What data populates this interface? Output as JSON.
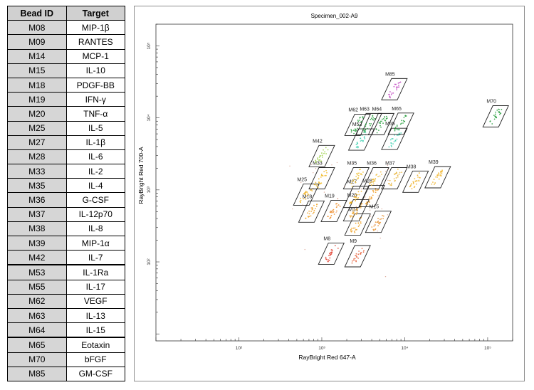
{
  "table": {
    "headers": {
      "bead": "Bead ID",
      "target": "Target"
    },
    "rows": [
      {
        "bead": "M08",
        "target": "MIP-1β"
      },
      {
        "bead": "M09",
        "target": "RANTES"
      },
      {
        "bead": "M14",
        "target": "MCP-1"
      },
      {
        "bead": "M15",
        "target": "IL-10"
      },
      {
        "bead": "M18",
        "target": "PDGF-BB"
      },
      {
        "bead": "M19",
        "target": "IFN-γ"
      },
      {
        "bead": "M20",
        "target": "TNF-α"
      },
      {
        "bead": "M25",
        "target": "IL-5"
      },
      {
        "bead": "M27",
        "target": "IL-1β"
      },
      {
        "bead": "M28",
        "target": "IL-6"
      },
      {
        "bead": "M33",
        "target": "IL-2"
      },
      {
        "bead": "M35",
        "target": "IL-4"
      },
      {
        "bead": "M36",
        "target": "G-CSF"
      },
      {
        "bead": "M37",
        "target": "IL-12p70"
      },
      {
        "bead": "M38",
        "target": "IL-8"
      },
      {
        "bead": "M39",
        "target": "MIP-1α"
      },
      {
        "bead": "M42",
        "target": "IL-7"
      },
      {
        "bead": "M53",
        "target": "IL-1Ra"
      },
      {
        "bead": "M55",
        "target": "IL-17"
      },
      {
        "bead": "M62",
        "target": "VEGF"
      },
      {
        "bead": "M63",
        "target": "IL-13"
      },
      {
        "bead": "M64",
        "target": "IL-15"
      },
      {
        "bead": "M65",
        "target": "Eotaxin"
      },
      {
        "bead": "M70",
        "target": "bFGF"
      },
      {
        "bead": "M85",
        "target": "GM-CSF"
      }
    ]
  },
  "chart_data": {
    "type": "scatter",
    "title": "Specimen_002-A9",
    "xlabel": "RayBright Red 647-A",
    "ylabel": "RayBright Red 700-A",
    "xscale": "log",
    "yscale": "log",
    "xlim": [
      10,
      200000
    ],
    "ylim": [
      8,
      200000
    ],
    "xticks": [
      "10²",
      "10³",
      "10⁴",
      "10⁵"
    ],
    "yticks": [
      "10²",
      "10³",
      "10⁴",
      "10⁵"
    ],
    "gates": [
      {
        "label": "M8",
        "x": 1300,
        "y": 130,
        "color": "#e03a2a"
      },
      {
        "label": "M9",
        "x": 2700,
        "y": 120,
        "color": "#e8603a"
      },
      {
        "label": "M14",
        "x": 2700,
        "y": 330,
        "color": "#f0a020"
      },
      {
        "label": "M15",
        "x": 4800,
        "y": 360,
        "color": "#e89030"
      },
      {
        "label": "M18",
        "x": 750,
        "y": 500,
        "color": "#f0a020"
      },
      {
        "label": "M19",
        "x": 1400,
        "y": 510,
        "color": "#f08a20"
      },
      {
        "label": "M20",
        "x": 2600,
        "y": 520,
        "color": "#f0a020"
      },
      {
        "label": "M25",
        "x": 650,
        "y": 860,
        "color": "#f0b020"
      },
      {
        "label": "M27",
        "x": 2600,
        "y": 800,
        "color": "#f0b020"
      },
      {
        "label": "M28",
        "x": 4000,
        "y": 820,
        "color": "#f09a20"
      },
      {
        "label": "M33",
        "x": 1000,
        "y": 1450,
        "color": "#f0b820"
      },
      {
        "label": "M35",
        "x": 2600,
        "y": 1450,
        "color": "#f0c030"
      },
      {
        "label": "M36",
        "x": 4500,
        "y": 1450,
        "color": "#f0b830"
      },
      {
        "label": "M37",
        "x": 7500,
        "y": 1450,
        "color": "#e8b030"
      },
      {
        "label": "M38",
        "x": 13500,
        "y": 1300,
        "color": "#f0b020"
      },
      {
        "label": "M39",
        "x": 25000,
        "y": 1500,
        "color": "#f0b020"
      },
      {
        "label": "M42",
        "x": 1000,
        "y": 2950,
        "color": "#9ad040"
      },
      {
        "label": "M53",
        "x": 3000,
        "y": 5000,
        "color": "#40d0b0"
      },
      {
        "label": "M55",
        "x": 7500,
        "y": 5100,
        "color": "#40d0b0"
      },
      {
        "label": "M62",
        "x": 2700,
        "y": 8000,
        "color": "#2aa040"
      },
      {
        "label": "M63",
        "x": 3700,
        "y": 8200,
        "color": "#2aa040"
      },
      {
        "label": "M64",
        "x": 5200,
        "y": 8200,
        "color": "#2aa040"
      },
      {
        "label": "M65",
        "x": 9000,
        "y": 8300,
        "color": "#2aa040"
      },
      {
        "label": "M70",
        "x": 125000,
        "y": 10500,
        "color": "#2aa040"
      },
      {
        "label": "M85",
        "x": 7500,
        "y": 25000,
        "color": "#c040c0"
      }
    ]
  }
}
